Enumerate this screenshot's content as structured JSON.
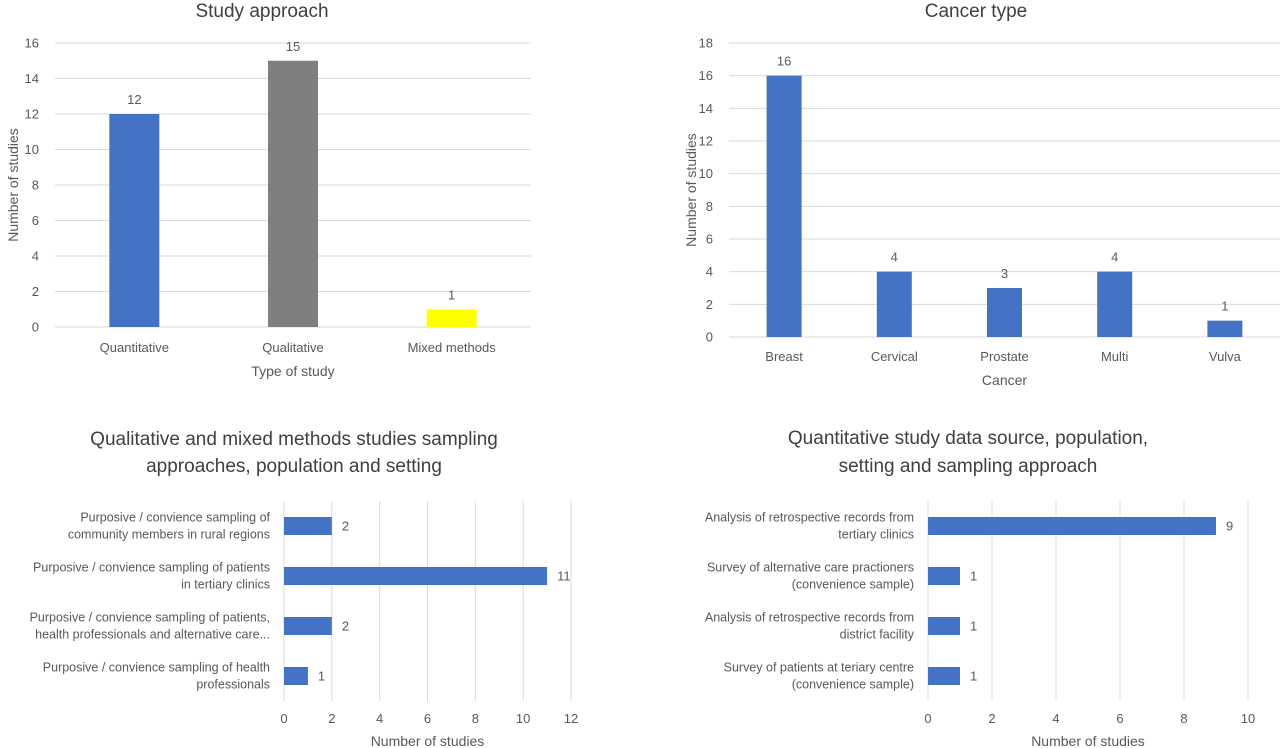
{
  "colors": {
    "blue": "#4472C4",
    "gray": "#7F7F7F",
    "yellow": "#FFFF00",
    "grid": "#D9D9D9",
    "text": "#595959",
    "title": "#404040"
  },
  "chart_data": [
    {
      "id": "study-approach",
      "type": "bar",
      "orientation": "vertical",
      "title": "Study approach",
      "xlabel": "Type of study",
      "ylabel": "Number of studies",
      "categories": [
        "Quantitative",
        "Qualitative",
        "Mixed methods"
      ],
      "values": [
        12,
        15,
        1
      ],
      "data_labels": [
        "12",
        "15",
        "1"
      ],
      "bar_colors": [
        "#4472C4",
        "#7F7F7F",
        "#FFFF00"
      ],
      "ylim": [
        0,
        16
      ],
      "yticks": [
        "0",
        "2",
        "4",
        "6",
        "8",
        "10",
        "12",
        "14",
        "16"
      ],
      "grid": true
    },
    {
      "id": "cancer-type",
      "type": "bar",
      "orientation": "vertical",
      "title": "Cancer type",
      "xlabel": "Cancer",
      "ylabel": "Number of studies",
      "categories": [
        "Breast",
        "Cervical",
        "Prostate",
        "Multi",
        "Vulva"
      ],
      "values": [
        16,
        4,
        3,
        4,
        1
      ],
      "data_labels": [
        "16",
        "4",
        "3",
        "4",
        "1"
      ],
      "bar_colors": [
        "#4472C4",
        "#4472C4",
        "#4472C4",
        "#4472C4",
        "#4472C4"
      ],
      "ylim": [
        0,
        18
      ],
      "yticks": [
        "0",
        "2",
        "4",
        "6",
        "8",
        "10",
        "12",
        "14",
        "16",
        "18"
      ],
      "grid": true
    },
    {
      "id": "qualitative-sampling",
      "type": "bar",
      "orientation": "horizontal",
      "title": [
        "Qualitative and mixed methods studies sampling",
        "approaches, population and setting"
      ],
      "xlabel": "Number of studies",
      "categories": [
        [
          "Purposive / convience sampling of",
          "community members in rural regions"
        ],
        [
          "Purposive / convience sampling of patients",
          "in tertiary clinics"
        ],
        [
          "Purposive / convience sampling of patients,",
          "health professionals and alternative care..."
        ],
        [
          "Purposive / convience sampling of health",
          "professionals"
        ]
      ],
      "values": [
        2,
        11,
        2,
        1
      ],
      "data_labels": [
        "2",
        "11",
        "2",
        "1"
      ],
      "xlim": [
        0,
        12
      ],
      "xticks": [
        "0",
        "2",
        "4",
        "6",
        "8",
        "10",
        "12"
      ],
      "grid": true
    },
    {
      "id": "quantitative-data-source",
      "type": "bar",
      "orientation": "horizontal",
      "title": [
        "Quantitative study data source, population,",
        "setting and sampling approach"
      ],
      "xlabel": "Number of studies",
      "categories": [
        [
          "Analysis of retrospective records from",
          "tertiary clinics"
        ],
        [
          "Survey of alternative care practioners",
          "(convenience sample)"
        ],
        [
          "Analysis of retrospective records from",
          "district facility"
        ],
        [
          "Survey of patients at teriary centre",
          "(convenience sample)"
        ]
      ],
      "values": [
        9,
        1,
        1,
        1
      ],
      "data_labels": [
        "9",
        "1",
        "1",
        "1"
      ],
      "xlim": [
        0,
        10
      ],
      "xticks": [
        "0",
        "2",
        "4",
        "6",
        "8",
        "10"
      ],
      "grid": true
    }
  ]
}
